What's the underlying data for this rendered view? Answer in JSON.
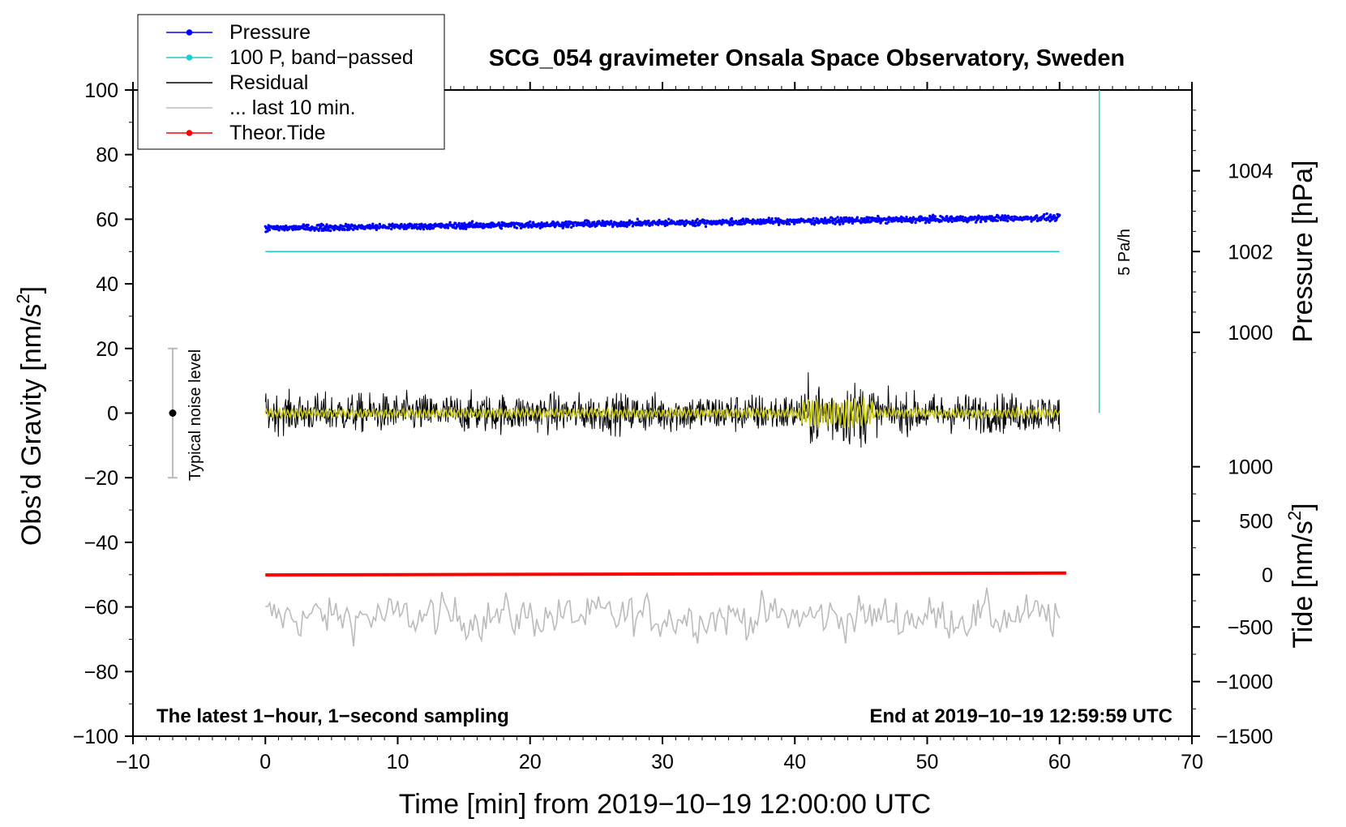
{
  "chart_data": {
    "type": "line",
    "title": "SCG_054 gravimeter Onsala Space Observatory, Sweden",
    "xlabel": "Time [min] from 2019−10−19 12:00:00 UTC",
    "ylabel_left": "Obs’d Gravity [nm/s2]",
    "ylabel_left_main": "Obs’d Gravity [nm/s",
    "ylabel_left_sup": "2",
    "ylabel_left_end": "]",
    "ylabel_pressure": "Pressure [hPa]",
    "ylabel_tide": "Tide [nm/s2]",
    "ylabel_tide_main": "Tide [nm/s",
    "ylabel_tide_sup": "2",
    "ylabel_tide_end": "]",
    "xlim": [
      -10,
      70
    ],
    "ylim": [
      -100,
      100
    ],
    "x_ticks": [
      -10,
      0,
      10,
      20,
      30,
      40,
      50,
      60,
      70
    ],
    "x_tick_labels": [
      "−10",
      "0",
      "10",
      "20",
      "30",
      "40",
      "50",
      "60",
      "70"
    ],
    "y_ticks": [
      -100,
      -80,
      -60,
      -40,
      -20,
      0,
      20,
      40,
      60,
      80,
      100
    ],
    "y_tick_labels": [
      "−100",
      "−80",
      "−60",
      "−40",
      "−20",
      "0",
      "20",
      "40",
      "60",
      "80",
      "100"
    ],
    "pressure_axis": {
      "ticks": [
        1000,
        1002,
        1004
      ],
      "tick_labels": [
        "1000",
        "1002",
        "1004"
      ],
      "gravity_at_ticks": [
        25,
        50,
        75
      ]
    },
    "tide_axis": {
      "ticks": [
        -1500,
        -1000,
        -500,
        0,
        500,
        1000
      ],
      "tick_labels": [
        "−1500",
        "−1000",
        "−500",
        "0",
        "500",
        "1000"
      ],
      "gravity_at_ticks": [
        -100,
        -83.1,
        -66.2,
        -50,
        -33.4,
        -16.6
      ]
    },
    "legend": {
      "position": "top-left",
      "entries": [
        {
          "label": "Pressure",
          "color": "#0000ff",
          "style": "line-dot"
        },
        {
          "label": "100 P, band−passed",
          "color": "#22cccc",
          "style": "line-dot"
        },
        {
          "label": "Residual",
          "color": "#000000",
          "style": "line"
        },
        {
          "label": "... last 10 min.",
          "color": "#bbbbbb",
          "style": "line"
        },
        {
          "label": "Theor.Tide",
          "color": "#ff0000",
          "style": "line-dot"
        }
      ]
    },
    "series": [
      {
        "name": "Pressure",
        "color": "#0000ff",
        "x_range": [
          0,
          60
        ],
        "start": 57.2,
        "end": 60.5,
        "scatter": 1.2
      },
      {
        "name": "100 P, band−passed",
        "color": "#22cccc",
        "x_range": [
          0,
          60
        ],
        "level": 50
      },
      {
        "name": "Residual",
        "color": "#000000",
        "x_range": [
          0,
          60
        ],
        "center": 0,
        "amplitude": 6,
        "burst_window": [
          41,
          46
        ],
        "burst_amplitude": 10
      },
      {
        "name": "Residual (smoothed)",
        "color": "#cccc00",
        "x_range": [
          0,
          60
        ],
        "center": 0,
        "amplitude": 1.5,
        "burst_window": [
          40.5,
          46
        ],
        "burst_amplitude": 5
      },
      {
        "name": "... last 10 min.",
        "color": "#bbbbbb",
        "x_range": [
          0,
          60
        ],
        "center": -63,
        "amplitude": 5
      },
      {
        "name": "Theor.Tide",
        "color": "#ff0000",
        "x_range": [
          0,
          60.5
        ],
        "start": -50.1,
        "end": -49.5
      }
    ],
    "annotations": {
      "noise_label": "Typical noise level",
      "noise_bar": {
        "x": -7,
        "center": 0,
        "low": -20,
        "high": 20
      },
      "scale_label": "5 Pa/h",
      "scale_bar": {
        "x": 63,
        "low": 0,
        "high": 100
      },
      "bottom_left": "The latest 1−hour, 1−second sampling",
      "bottom_right": "End at 2019−10−19 12:59:59 UTC"
    }
  },
  "colors": {
    "pressure": "#0000ff",
    "bandpassed": "#22cccc",
    "residual": "#000000",
    "smoothed": "#c8c814",
    "last10": "#bbbbbb",
    "tide": "#ff0000"
  }
}
